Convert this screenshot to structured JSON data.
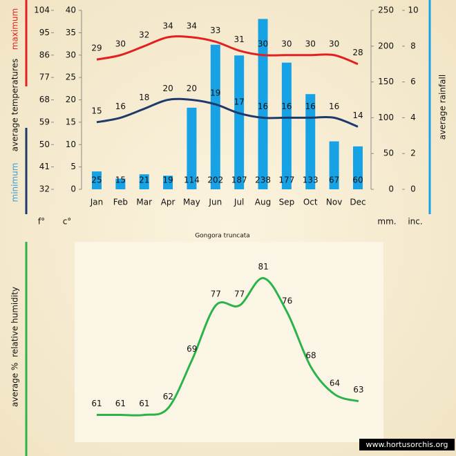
{
  "chart_data": [
    {
      "type": "combo",
      "title": "Gongora truncata",
      "categories": [
        "Jan",
        "Feb",
        "Mar",
        "Apr",
        "May",
        "Jun",
        "Jul",
        "Aug",
        "Sep",
        "Oct",
        "Nov",
        "Dec"
      ],
      "series": [
        {
          "name": "maximum",
          "color": "#e3201f",
          "values": [
            29,
            30,
            32,
            34,
            34,
            33,
            31,
            30,
            30,
            30,
            30,
            28
          ]
        },
        {
          "name": "minimum",
          "color": "#1e3a6a",
          "values": [
            15,
            16,
            18,
            20,
            20,
            19,
            17,
            16,
            16,
            16,
            16,
            14
          ]
        },
        {
          "color": "#18a2e6",
          "axis": "y2",
          "values": [
            25,
            15,
            21,
            19,
            114,
            202,
            187,
            238,
            177,
            133,
            67,
            60
          ]
        }
      ],
      "ytitle": "average temperatures",
      "y2title": "average rainfall",
      "ylabel": "c°",
      "ylim": [
        0,
        40
      ],
      "yticks": [
        0,
        5,
        10,
        15,
        20,
        25,
        30,
        35,
        40
      ],
      "y3label": "f°",
      "y3lim": [
        32,
        104
      ],
      "y3ticks": [
        32,
        41,
        50,
        59,
        68,
        77,
        86,
        95,
        104
      ],
      "y2label": "mm.",
      "y2lim": [
        0,
        250
      ],
      "y2ticks": [
        0,
        50,
        100,
        150,
        200,
        250
      ],
      "y4label": "inc.",
      "y4lim": [
        0,
        10
      ],
      "y4ticks": [
        0,
        2,
        4,
        6,
        8,
        10
      ]
    },
    {
      "type": "line",
      "ylabel": "average %  relative humidity",
      "categories": [
        null,
        null,
        null,
        null,
        null,
        null,
        null,
        null,
        null,
        null,
        null,
        null
      ],
      "series": [
        {
          "color": "#2bb34a",
          "values": [
            61,
            61,
            61,
            62,
            69,
            77,
            77,
            81,
            76,
            68,
            64,
            63
          ]
        }
      ],
      "ylim": [
        56,
        86
      ]
    }
  ],
  "watermark": "www.hortusorchis.org"
}
